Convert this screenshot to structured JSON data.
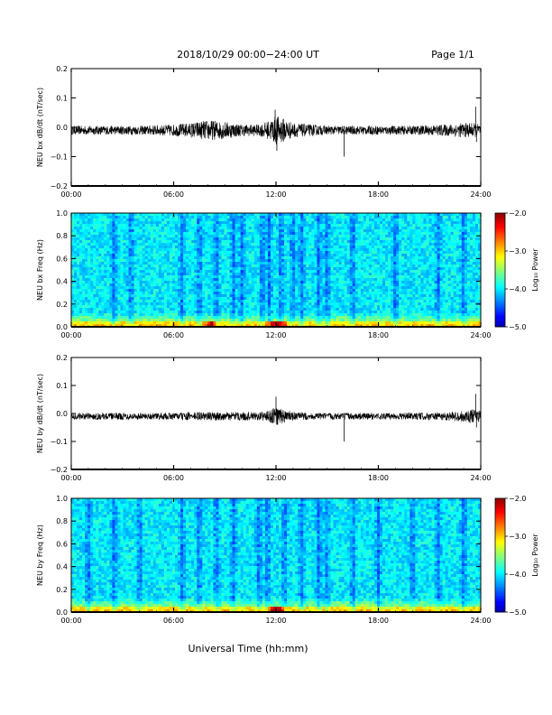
{
  "header": {
    "title": "2018/10/29  00:00−24:00 UT",
    "page": "Page 1/1"
  },
  "xlabel": "Universal Time (hh:mm)",
  "colors": {
    "trace": "#000000",
    "background": "#ffffff"
  },
  "chart_data": [
    {
      "type": "line",
      "ylabel": "NEU bx dB/dt (nT/sec)",
      "x_ticks": [
        "00:00",
        "06:00",
        "12:00",
        "18:00",
        "24:00"
      ],
      "xlim": [
        0,
        24
      ],
      "ylim": [
        -0.2,
        0.2
      ],
      "y_ticks": [
        "0.2",
        "0.1",
        "0.0",
        "−0.1",
        "−0.2"
      ],
      "series": [
        {
          "envelope_hours": [
            0,
            2,
            4,
            6,
            7,
            8,
            9,
            10,
            11,
            11.5,
            12,
            12.5,
            13,
            14,
            15,
            16,
            17,
            18,
            20,
            22,
            23,
            23.5,
            24
          ],
          "envelope_amplitude": [
            0.015,
            0.015,
            0.015,
            0.02,
            0.025,
            0.035,
            0.03,
            0.02,
            0.02,
            0.03,
            0.05,
            0.04,
            0.025,
            0.02,
            0.015,
            0.015,
            0.015,
            0.015,
            0.015,
            0.02,
            0.025,
            0.025,
            0.02
          ],
          "spikes": [
            {
              "x": 11.95,
              "y": 0.06
            },
            {
              "x": 12.05,
              "y": -0.08
            },
            {
              "x": 16.0,
              "y": -0.1
            },
            {
              "x": 23.7,
              "y": 0.07
            },
            {
              "x": 23.75,
              "y": -0.05
            }
          ]
        }
      ]
    },
    {
      "type": "heatmap",
      "ylabel": "NEU bx Freq (Hz)",
      "x_ticks": [
        "00:00",
        "06:00",
        "12:00",
        "18:00",
        "24:00"
      ],
      "xlim": [
        0,
        24
      ],
      "ylim": [
        0,
        1
      ],
      "y_ticks": [
        "1.0",
        "0.8",
        "0.6",
        "0.4",
        "0.2",
        "0.0"
      ],
      "colorbar": {
        "label": "Log₁₀ Power",
        "range": [
          -5.0,
          -2.0
        ],
        "ticks": [
          "−2.0",
          "−3.0",
          "−4.0",
          "−5.0"
        ]
      },
      "dark_stripes_hours": [
        2.5,
        3.5,
        6.5,
        7.5,
        8.5,
        9.5,
        10,
        11.2,
        11.6,
        12.3,
        13,
        13.5,
        14.5,
        15,
        16.5,
        19,
        21.5,
        23
      ],
      "hot_spots_hours": [
        8.2,
        11.8,
        12.2
      ]
    },
    {
      "type": "line",
      "ylabel": "NEU by dB/dt (nT/sec)",
      "x_ticks": [
        "00:00",
        "06:00",
        "12:00",
        "18:00",
        "24:00"
      ],
      "xlim": [
        0,
        24
      ],
      "ylim": [
        -0.2,
        0.2
      ],
      "y_ticks": [
        "0.2",
        "0.1",
        "0.0",
        "−0.1",
        "−0.2"
      ],
      "series": [
        {
          "envelope_hours": [
            0,
            2,
            4,
            6,
            7,
            8,
            9,
            10,
            11,
            11.5,
            12,
            12.5,
            13,
            14,
            15,
            16,
            17,
            18,
            20,
            22,
            23,
            23.5,
            24
          ],
          "envelope_amplitude": [
            0.012,
            0.012,
            0.012,
            0.012,
            0.015,
            0.015,
            0.015,
            0.015,
            0.015,
            0.02,
            0.035,
            0.025,
            0.015,
            0.012,
            0.012,
            0.012,
            0.012,
            0.012,
            0.012,
            0.015,
            0.02,
            0.025,
            0.02
          ],
          "spikes": [
            {
              "x": 12.0,
              "y": 0.06
            },
            {
              "x": 12.1,
              "y": -0.04
            },
            {
              "x": 16.0,
              "y": -0.1
            },
            {
              "x": 23.7,
              "y": 0.07
            },
            {
              "x": 23.75,
              "y": -0.05
            }
          ]
        }
      ]
    },
    {
      "type": "heatmap",
      "ylabel": "NEU by Freq (Hz)",
      "x_ticks": [
        "00:00",
        "06:00",
        "12:00",
        "18:00",
        "24:00"
      ],
      "xlim": [
        0,
        24
      ],
      "ylim": [
        0,
        1
      ],
      "y_ticks": [
        "1.0",
        "0.8",
        "0.6",
        "0.4",
        "0.2",
        "0.0"
      ],
      "colorbar": {
        "label": "Log₁₀ Power",
        "range": [
          -5.0,
          -2.0
        ],
        "ticks": [
          "−2.0",
          "−3.0",
          "−4.0",
          "−5.0"
        ]
      },
      "dark_stripes_hours": [
        1,
        2.5,
        4,
        6.5,
        7.5,
        8.5,
        9.5,
        11,
        11.5,
        12.5,
        13.5,
        14.5,
        15,
        16.5,
        18,
        20,
        21.5,
        23
      ],
      "hot_spots_hours": [
        11.9,
        12.2
      ]
    }
  ]
}
